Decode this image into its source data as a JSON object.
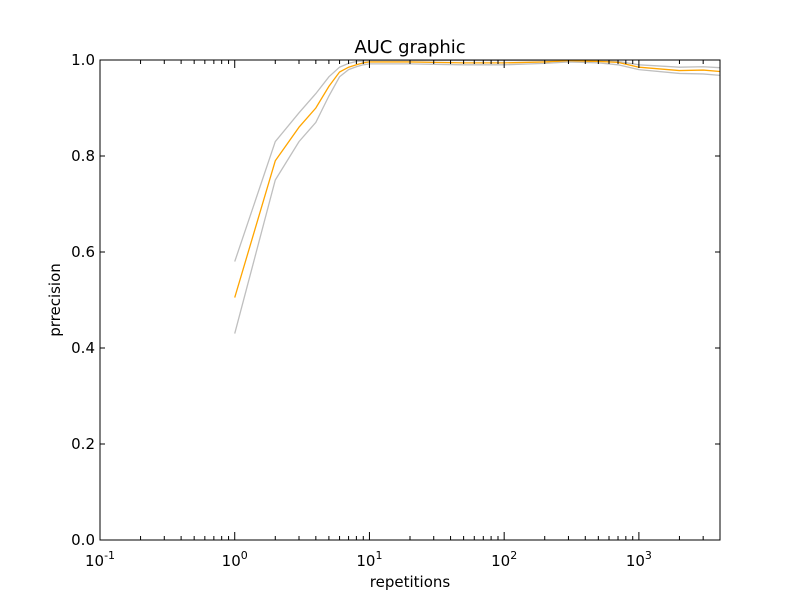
{
  "chart_data": {
    "type": "line",
    "title": "AUC graphic",
    "xlabel": "repetitions",
    "ylabel": "prrecision",
    "xscale": "log",
    "xlim": [
      0.1,
      4000
    ],
    "ylim": [
      0.0,
      1.0
    ],
    "x_ticks": [
      {
        "value": 0.1,
        "base": "10",
        "exp": "-1"
      },
      {
        "value": 1,
        "base": "10",
        "exp": "0"
      },
      {
        "value": 10,
        "base": "10",
        "exp": "1"
      },
      {
        "value": 100,
        "base": "10",
        "exp": "2"
      },
      {
        "value": 1000,
        "base": "10",
        "exp": "3"
      }
    ],
    "y_ticks": [
      {
        "value": 0.0,
        "label": "0.0"
      },
      {
        "value": 0.2,
        "label": "0.2"
      },
      {
        "value": 0.4,
        "label": "0.4"
      },
      {
        "value": 0.6,
        "label": "0.6"
      },
      {
        "value": 0.8,
        "label": "0.8"
      },
      {
        "value": 1.0,
        "label": "1.0"
      }
    ],
    "grid": false,
    "series": [
      {
        "color": "#bfbfbf",
        "x": [
          1,
          2,
          3,
          4,
          5,
          6,
          7,
          8,
          9,
          10,
          20,
          30,
          50,
          100,
          200,
          300,
          500,
          700,
          1000,
          2000,
          3000,
          4000
        ],
        "y": [
          0.58,
          0.83,
          0.89,
          0.93,
          0.965,
          0.985,
          0.993,
          0.997,
          0.998,
          0.999,
          0.999,
          0.999,
          0.999,
          0.999,
          0.999,
          0.999,
          0.998,
          0.997,
          0.99,
          0.985,
          0.986,
          0.984
        ]
      },
      {
        "color": "#ffa500",
        "x": [
          1,
          2,
          3,
          4,
          5,
          6,
          7,
          8,
          9,
          10,
          20,
          30,
          50,
          100,
          200,
          300,
          500,
          700,
          1000,
          2000,
          3000,
          4000
        ],
        "y": [
          0.505,
          0.79,
          0.86,
          0.9,
          0.945,
          0.975,
          0.985,
          0.99,
          0.994,
          0.996,
          0.996,
          0.995,
          0.994,
          0.994,
          0.996,
          0.998,
          0.997,
          0.995,
          0.985,
          0.978,
          0.979,
          0.976
        ]
      },
      {
        "color": "#bfbfbf",
        "x": [
          1,
          2,
          3,
          4,
          5,
          6,
          7,
          8,
          9,
          10,
          20,
          30,
          50,
          100,
          200,
          300,
          500,
          700,
          1000,
          2000,
          3000,
          4000
        ],
        "y": [
          0.43,
          0.75,
          0.83,
          0.87,
          0.925,
          0.965,
          0.98,
          0.986,
          0.99,
          0.992,
          0.992,
          0.991,
          0.99,
          0.99,
          0.993,
          0.996,
          0.994,
          0.99,
          0.98,
          0.972,
          0.971,
          0.968
        ]
      }
    ]
  }
}
